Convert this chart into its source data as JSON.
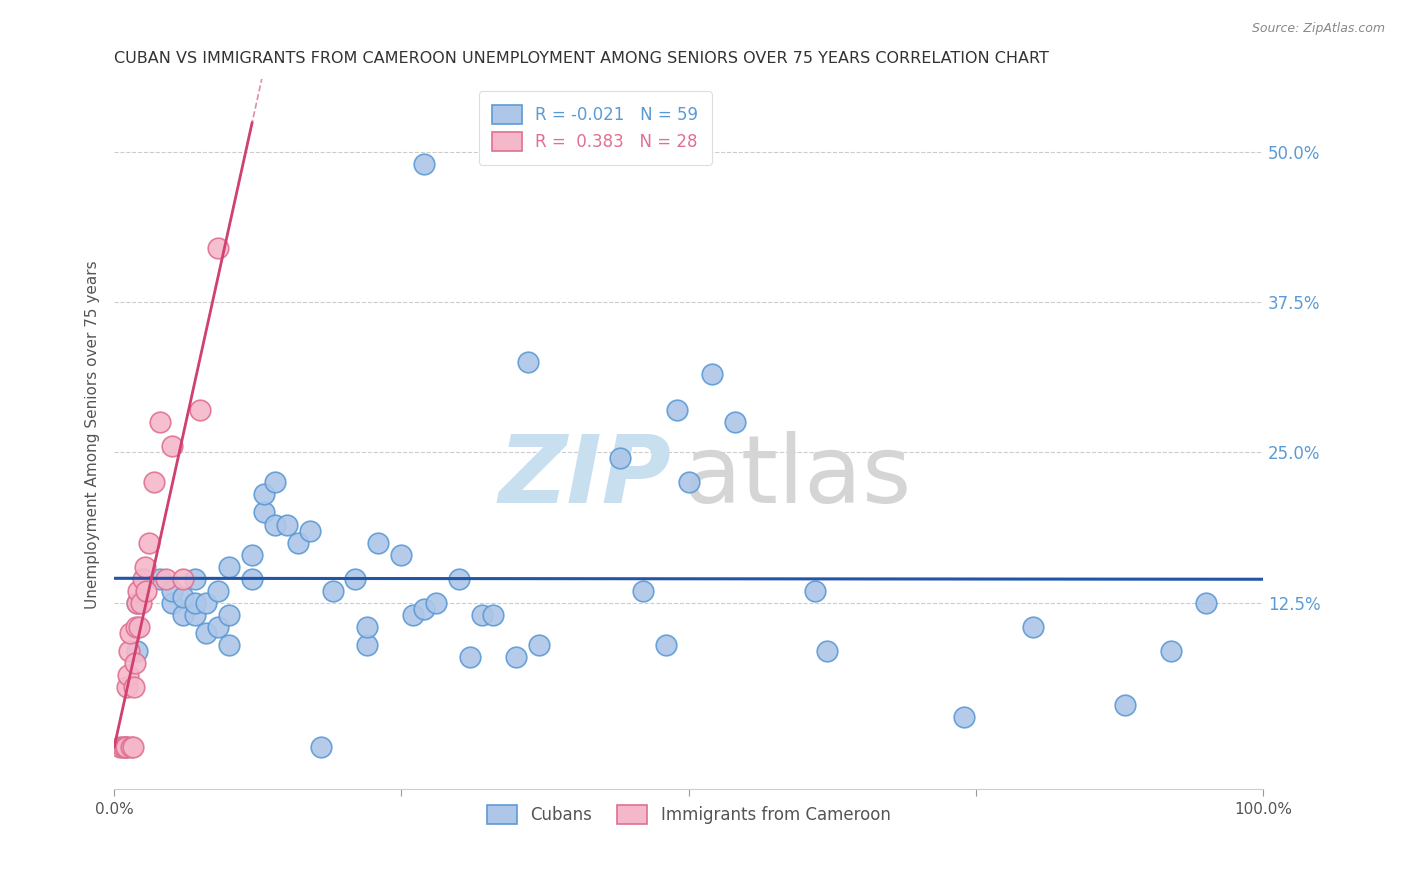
{
  "title": "CUBAN VS IMMIGRANTS FROM CAMEROON UNEMPLOYMENT AMONG SENIORS OVER 75 YEARS CORRELATION CHART",
  "source": "Source: ZipAtlas.com",
  "ylabel": "Unemployment Among Seniors over 75 years",
  "xlim": [
    0.0,
    1.0
  ],
  "ylim": [
    -0.03,
    0.56
  ],
  "yticks": [
    0.125,
    0.25,
    0.375,
    0.5
  ],
  "ytick_labels": [
    "12.5%",
    "25.0%",
    "37.5%",
    "50.0%"
  ],
  "xticks": [
    0.0,
    0.25,
    0.5,
    0.75,
    1.0
  ],
  "xtick_labels": [
    "0.0%",
    "",
    "",
    "",
    "100.0%"
  ],
  "legend_r_cubans": "-0.021",
  "legend_n_cubans": "59",
  "legend_r_cameroon": "0.383",
  "legend_n_cameroon": "28",
  "color_cubans": "#aec6e8",
  "color_cameroon": "#f5b8cb",
  "edge_color_cubans": "#5b9bd5",
  "edge_color_cameroon": "#e07090",
  "trendline_color_cubans": "#2255aa",
  "trendline_color_cameroon": "#d04070",
  "watermark_zip_color": "#c8dff0",
  "watermark_atlas_color": "#d5d5d5",
  "cubans_x": [
    0.27,
    0.01,
    0.02,
    0.02,
    0.04,
    0.05,
    0.05,
    0.06,
    0.06,
    0.07,
    0.07,
    0.07,
    0.08,
    0.08,
    0.09,
    0.09,
    0.1,
    0.1,
    0.1,
    0.12,
    0.12,
    0.13,
    0.13,
    0.14,
    0.14,
    0.15,
    0.16,
    0.17,
    0.18,
    0.19,
    0.21,
    0.22,
    0.22,
    0.23,
    0.25,
    0.26,
    0.27,
    0.28,
    0.3,
    0.31,
    0.32,
    0.33,
    0.35,
    0.36,
    0.37,
    0.44,
    0.46,
    0.48,
    0.49,
    0.5,
    0.52,
    0.54,
    0.61,
    0.62,
    0.74,
    0.8,
    0.88,
    0.92,
    0.95
  ],
  "cubans_y": [
    0.49,
    0.005,
    0.085,
    0.125,
    0.145,
    0.125,
    0.135,
    0.115,
    0.13,
    0.115,
    0.125,
    0.145,
    0.1,
    0.125,
    0.105,
    0.135,
    0.09,
    0.115,
    0.155,
    0.145,
    0.165,
    0.2,
    0.215,
    0.19,
    0.225,
    0.19,
    0.175,
    0.185,
    0.005,
    0.135,
    0.145,
    0.09,
    0.105,
    0.175,
    0.165,
    0.115,
    0.12,
    0.125,
    0.145,
    0.08,
    0.115,
    0.115,
    0.08,
    0.325,
    0.09,
    0.245,
    0.135,
    0.09,
    0.285,
    0.225,
    0.315,
    0.275,
    0.135,
    0.085,
    0.03,
    0.105,
    0.04,
    0.085,
    0.125
  ],
  "cameroon_x": [
    0.005,
    0.008,
    0.009,
    0.01,
    0.011,
    0.012,
    0.013,
    0.014,
    0.015,
    0.016,
    0.017,
    0.018,
    0.019,
    0.02,
    0.021,
    0.022,
    0.023,
    0.025,
    0.027,
    0.028,
    0.03,
    0.035,
    0.04,
    0.045,
    0.05,
    0.06,
    0.075,
    0.09
  ],
  "cameroon_y": [
    0.005,
    0.005,
    0.005,
    0.005,
    0.055,
    0.065,
    0.085,
    0.1,
    0.005,
    0.005,
    0.055,
    0.075,
    0.105,
    0.125,
    0.135,
    0.105,
    0.125,
    0.145,
    0.155,
    0.135,
    0.175,
    0.225,
    0.275,
    0.145,
    0.255,
    0.145,
    0.285,
    0.42
  ]
}
